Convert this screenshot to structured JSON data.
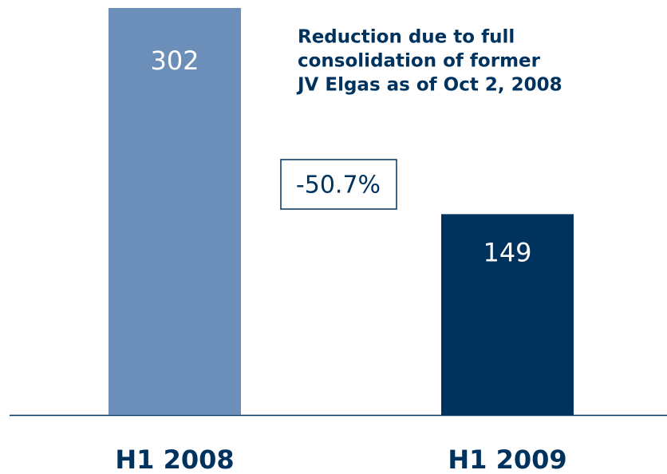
{
  "chart_data": {
    "type": "bar",
    "categories": [
      "H1 2008",
      "H1 2009"
    ],
    "values": [
      302,
      149
    ],
    "colors": [
      "#6b8fb8",
      "#00325e"
    ],
    "annotation": [
      "Reduction due to full",
      "consolidation of former",
      "JV Elgas as of Oct 2, 2008"
    ],
    "change_label": "-50.7%"
  }
}
